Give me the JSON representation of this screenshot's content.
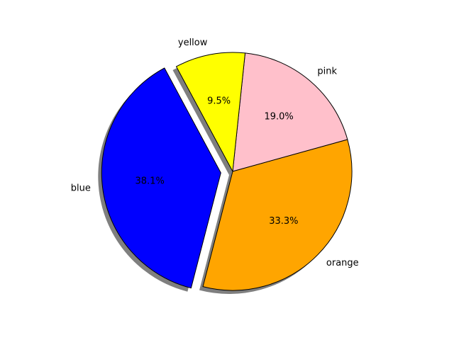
{
  "chart_data": {
    "type": "pie",
    "categories": [
      "pink",
      "orange",
      "blue",
      "yellow"
    ],
    "values": [
      19.0,
      33.3,
      38.1,
      9.5
    ],
    "pct_labels": [
      "19.0%",
      "33.3%",
      "38.1%",
      "9.5%"
    ],
    "colors": [
      "#ffc0cb",
      "#ffa500",
      "#0000ff",
      "#ffff00"
    ],
    "exploded": "blue",
    "shadow": true,
    "start_angle_deg": 84,
    "direction": "clockwise",
    "legend": "none",
    "title": ""
  }
}
